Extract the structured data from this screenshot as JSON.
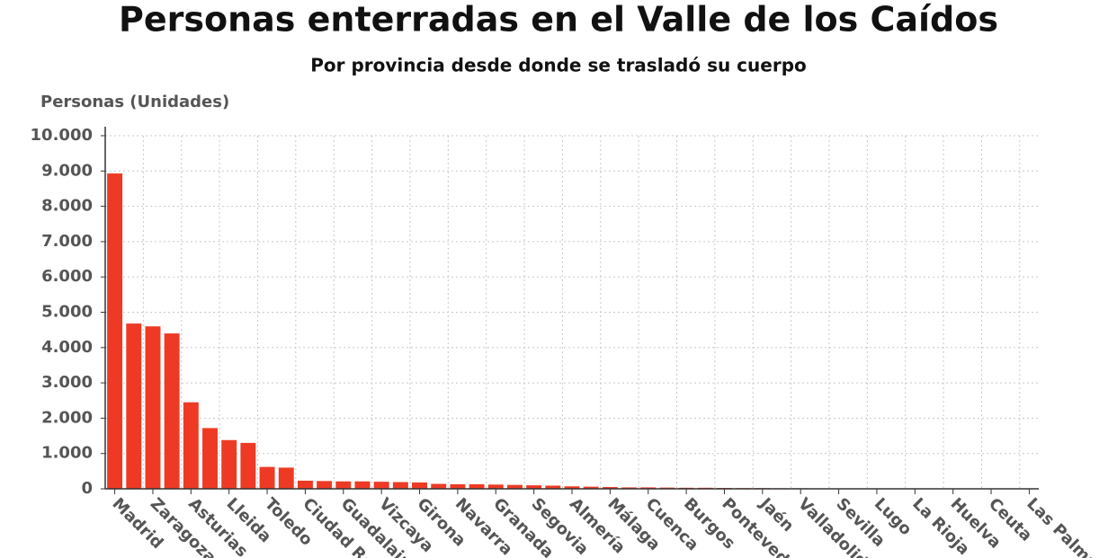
{
  "chart_data": {
    "type": "bar",
    "title": "Personas enterradas en el Valle de los Caídos",
    "subtitle": "Por provincia desde donde se trasladó su cuerpo",
    "y_label": "Personas (Unidades)",
    "color": "#ee3a24",
    "categories": [
      "Madrid",
      null,
      "Zaragoza",
      null,
      "Asturias",
      null,
      "Lleida",
      null,
      "Toledo",
      null,
      "Ciudad Real",
      null,
      "Guadalajara",
      null,
      "Vizcaya",
      null,
      "Girona",
      null,
      "Navarra",
      null,
      "Granada",
      null,
      "Segovia",
      null,
      "Almería",
      null,
      "Málaga",
      null,
      "Cuenca",
      null,
      "Burgos",
      null,
      "Pontevedra",
      null,
      "Jaén",
      null,
      "Valladolid",
      null,
      "Sevilla",
      null,
      "Lugo",
      null,
      "La Rioja",
      null,
      "Huelva",
      null,
      "Ceuta",
      null,
      "Las Palmas"
    ],
    "values": [
      8930,
      4680,
      4600,
      4400,
      2450,
      1720,
      1380,
      1300,
      620,
      600,
      230,
      220,
      210,
      210,
      200,
      190,
      180,
      140,
      130,
      130,
      120,
      110,
      100,
      90,
      70,
      60,
      50,
      40,
      40,
      35,
      30,
      30,
      25,
      20,
      20,
      15,
      15,
      10,
      10,
      10,
      8,
      8,
      6,
      5,
      5,
      4,
      3,
      2,
      1
    ],
    "ylim": [
      0,
      10000
    ],
    "yticks": [
      0,
      {
        "value": 1000,
        "label": "1.000"
      },
      {
        "value": 2000,
        "label": "2.000"
      },
      {
        "value": 3000,
        "label": "3.000"
      },
      {
        "value": 4000,
        "label": "4.000"
      },
      {
        "value": 5000,
        "label": "5.000"
      },
      {
        "value": 6000,
        "label": "6.000"
      },
      {
        "value": 7000,
        "label": "7.000"
      },
      {
        "value": 8000,
        "label": "8.000"
      },
      {
        "value": 9000,
        "label": "9.000"
      },
      {
        "value": 10000,
        "label": "10.000"
      }
    ],
    "grid": true
  }
}
